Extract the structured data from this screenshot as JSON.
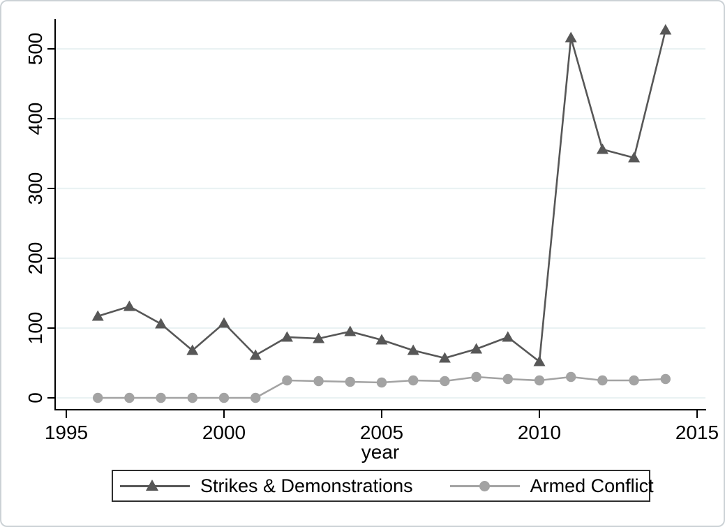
{
  "chart_data": {
    "type": "line",
    "x": [
      1996,
      1997,
      1998,
      1999,
      2000,
      2001,
      2002,
      2003,
      2004,
      2005,
      2006,
      2007,
      2008,
      2009,
      2010,
      2011,
      2012,
      2013,
      2014
    ],
    "series": [
      {
        "name": "Strikes & Demonstrations",
        "marker": "triangle",
        "color": "#575757",
        "values": [
          117,
          131,
          106,
          68,
          107,
          61,
          87,
          85,
          95,
          83,
          68,
          57,
          70,
          87,
          52,
          516,
          356,
          344,
          527
        ]
      },
      {
        "name": "Armed Conflict",
        "marker": "circle",
        "color": "#a3a3a3",
        "values": [
          0,
          0,
          0,
          0,
          0,
          0,
          25,
          24,
          23,
          22,
          25,
          24,
          30,
          27,
          25,
          30,
          25,
          25,
          27
        ]
      }
    ],
    "title": "",
    "xlabel": "year",
    "ylabel": "",
    "x_ticks": [
      1995,
      2000,
      2005,
      2010,
      2015
    ],
    "y_ticks": [
      0,
      100,
      200,
      300,
      400,
      500
    ],
    "xlim": [
      1994.65,
      2015.3
    ],
    "ylim": [
      0,
      500
    ],
    "grid": true,
    "gridline_color": "#eaf2f3",
    "axis_color": "#000000",
    "legend_position": "bottom"
  }
}
